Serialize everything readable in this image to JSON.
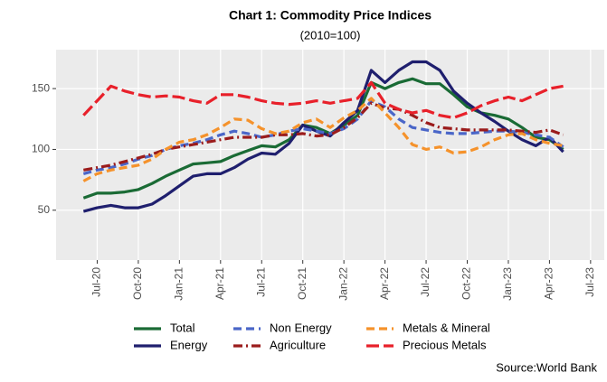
{
  "chart_data": {
    "type": "line",
    "title": "Chart 1: Commodity Price Indices",
    "subtitle": "(2010=100)",
    "source": "Source:World Bank",
    "x": [
      "2020-06",
      "2020-07",
      "2020-08",
      "2020-09",
      "2020-10",
      "2020-11",
      "2020-12",
      "2021-01",
      "2021-02",
      "2021-03",
      "2021-04",
      "2021-05",
      "2021-06",
      "2021-07",
      "2021-08",
      "2021-09",
      "2021-10",
      "2021-11",
      "2021-12",
      "2022-01",
      "2022-02",
      "2022-03",
      "2022-04",
      "2022-05",
      "2022-06",
      "2022-07",
      "2022-08",
      "2022-09",
      "2022-10",
      "2022-11",
      "2022-12",
      "2023-01",
      "2023-02",
      "2023-03",
      "2023-04",
      "2023-05"
    ],
    "series": [
      {
        "name": "Total",
        "color": "#1a6b35",
        "dash": "solid",
        "values": [
          60,
          64,
          64,
          65,
          67,
          72,
          78,
          83,
          88,
          89,
          90,
          95,
          99,
          103,
          102,
          108,
          120,
          118,
          113,
          120,
          128,
          155,
          150,
          155,
          158,
          154,
          154,
          145,
          135,
          130,
          128,
          125,
          118,
          110,
          108,
          100
        ]
      },
      {
        "name": "Energy",
        "color": "#1f1f6e",
        "dash": "solid",
        "values": [
          49,
          52,
          54,
          52,
          52,
          55,
          62,
          70,
          78,
          80,
          80,
          85,
          92,
          97,
          96,
          105,
          120,
          115,
          111,
          122,
          132,
          165,
          155,
          165,
          172,
          172,
          165,
          148,
          138,
          130,
          123,
          115,
          108,
          103,
          110,
          98
        ]
      },
      {
        "name": "Non Energy",
        "color": "#4a66c8",
        "dash": "dashed",
        "values": [
          80,
          83,
          85,
          88,
          92,
          95,
          100,
          103,
          105,
          108,
          112,
          115,
          113,
          110,
          112,
          115,
          117,
          115,
          113,
          117,
          125,
          140,
          135,
          125,
          118,
          116,
          114,
          113,
          113,
          114,
          115,
          115,
          114,
          112,
          110,
          102
        ]
      },
      {
        "name": "Agriculture",
        "color": "#9b1c1c",
        "dash": "dotdash",
        "values": [
          83,
          85,
          87,
          90,
          93,
          96,
          100,
          102,
          104,
          106,
          108,
          110,
          110,
          110,
          112,
          112,
          113,
          111,
          112,
          118,
          126,
          138,
          134,
          133,
          128,
          122,
          118,
          117,
          116,
          116,
          116,
          116,
          115,
          114,
          116,
          112
        ]
      },
      {
        "name": "Metals & Mineral",
        "color": "#f5922b",
        "dash": "dashed",
        "values": [
          74,
          80,
          83,
          85,
          87,
          92,
          100,
          106,
          108,
          112,
          118,
          125,
          124,
          117,
          113,
          115,
          122,
          125,
          118,
          126,
          132,
          142,
          130,
          118,
          104,
          100,
          102,
          97,
          98,
          102,
          108,
          112,
          113,
          108,
          105,
          103
        ]
      },
      {
        "name": "Precious Metals",
        "color": "#e8202a",
        "dash": "longdash",
        "values": [
          128,
          140,
          152,
          148,
          145,
          143,
          144,
          143,
          140,
          138,
          145,
          145,
          143,
          140,
          138,
          137,
          138,
          140,
          138,
          140,
          142,
          155,
          138,
          133,
          130,
          132,
          128,
          126,
          130,
          136,
          140,
          143,
          140,
          145,
          150,
          152
        ]
      }
    ],
    "xlim": [
      "2020-04",
      "2023-08"
    ],
    "xticks": [
      {
        "value": "2020-07",
        "label": "Jul-20"
      },
      {
        "value": "2020-10",
        "label": "Oct-20"
      },
      {
        "value": "2021-01",
        "label": "Jan-21"
      },
      {
        "value": "2021-04",
        "label": "Apr-21"
      },
      {
        "value": "2021-07",
        "label": "Jul-21"
      },
      {
        "value": "2021-10",
        "label": "Oct-21"
      },
      {
        "value": "2022-01",
        "label": "Jan-22"
      },
      {
        "value": "2022-04",
        "label": "Apr-22"
      },
      {
        "value": "2022-07",
        "label": "Jul-22"
      },
      {
        "value": "2022-10",
        "label": "Oct-22"
      },
      {
        "value": "2023-01",
        "label": "Jan-23"
      },
      {
        "value": "2023-04",
        "label": "Apr-23"
      },
      {
        "value": "2023-07",
        "label": "Jul-23"
      }
    ],
    "ylim": [
      9,
      182
    ],
    "yticks": [
      50,
      100,
      150
    ],
    "grid": true,
    "legend": "bottom"
  }
}
